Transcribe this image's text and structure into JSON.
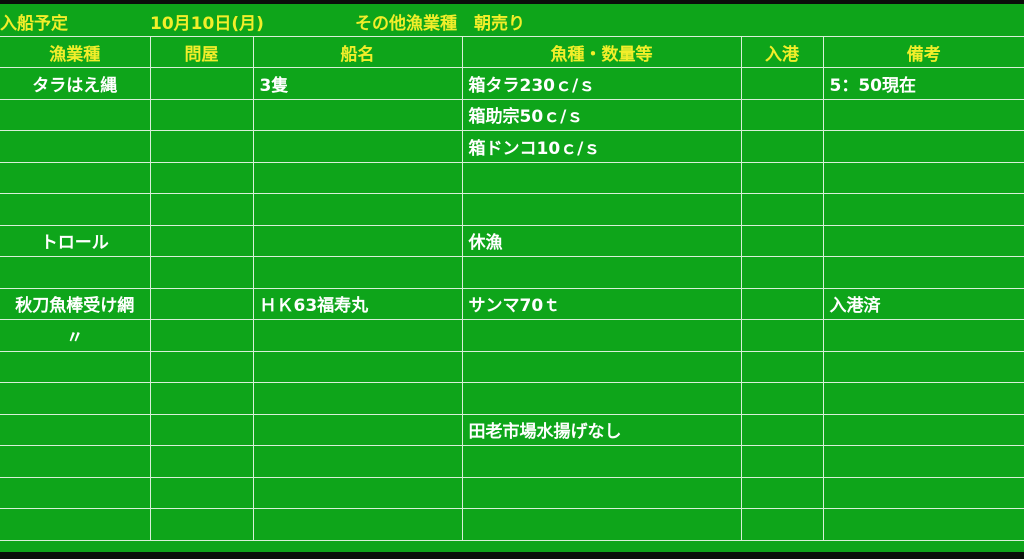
{
  "title_bar": {
    "label": "入船予定",
    "date": "10月10日(月)",
    "subtitle": "その他漁業種　朝売り"
  },
  "columns": [
    "漁業種",
    "問屋",
    "船名",
    "魚種・数量等",
    "入港",
    "備考"
  ],
  "rows": [
    [
      "タラはえ縄",
      "",
      "3隻",
      "箱タラ230ｃ/ｓ",
      "",
      "5：50現在"
    ],
    [
      "",
      "",
      "",
      "箱助宗50ｃ/ｓ",
      "",
      ""
    ],
    [
      "",
      "",
      "",
      "箱ドンコ10ｃ/ｓ",
      "",
      ""
    ],
    [
      "",
      "",
      "",
      "",
      "",
      ""
    ],
    [
      "",
      "",
      "",
      "",
      "",
      ""
    ],
    [
      "トロール",
      "",
      "",
      "休漁",
      "",
      ""
    ],
    [
      "",
      "",
      "",
      "",
      "",
      ""
    ],
    [
      "秋刀魚棒受け網",
      "",
      "ＨＫ63福寿丸",
      "サンマ70ｔ",
      "",
      "入港済"
    ],
    [
      "〃",
      "",
      "",
      "",
      "",
      ""
    ],
    [
      "",
      "",
      "",
      "",
      "",
      ""
    ],
    [
      "",
      "",
      "",
      "",
      "",
      ""
    ],
    [
      "",
      "",
      "",
      "田老市場水揚げなし",
      "",
      ""
    ],
    [
      "",
      "",
      "",
      "",
      "",
      ""
    ],
    [
      "",
      "",
      "",
      "",
      "",
      ""
    ],
    [
      "",
      "",
      "",
      "",
      "",
      ""
    ]
  ],
  "colors": {
    "background": "#0ea51a",
    "header_text": "#f2ee2a",
    "cell_text": "#ffffff",
    "grid": "#d8f0d8"
  }
}
